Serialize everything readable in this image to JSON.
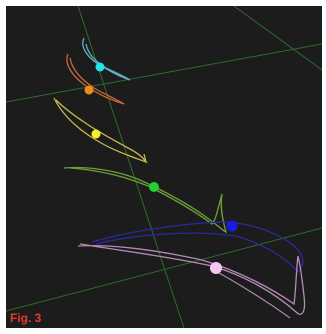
{
  "figure": {
    "label": "Fig. 3",
    "label_color": "#e53b2c",
    "background_color": "#1c1c1c"
  },
  "grid": {
    "line_color": "#2f6b2f"
  },
  "trajectories": [
    {
      "id": "cyan",
      "stroke": "#5fb0c0",
      "marker": "#1fe6e6"
    },
    {
      "id": "orange",
      "stroke": "#c8683a",
      "marker": "#f08a1c"
    },
    {
      "id": "yellow",
      "stroke": "#c9b84a",
      "marker": "#f6f030"
    },
    {
      "id": "green",
      "stroke": "#6aa03a",
      "marker": "#22d033"
    },
    {
      "id": "blue",
      "stroke": "#2a2a9a",
      "marker": "#1a1ae6"
    },
    {
      "id": "pink",
      "stroke": "#b48ab8",
      "marker": "#f4c6f0"
    }
  ]
}
